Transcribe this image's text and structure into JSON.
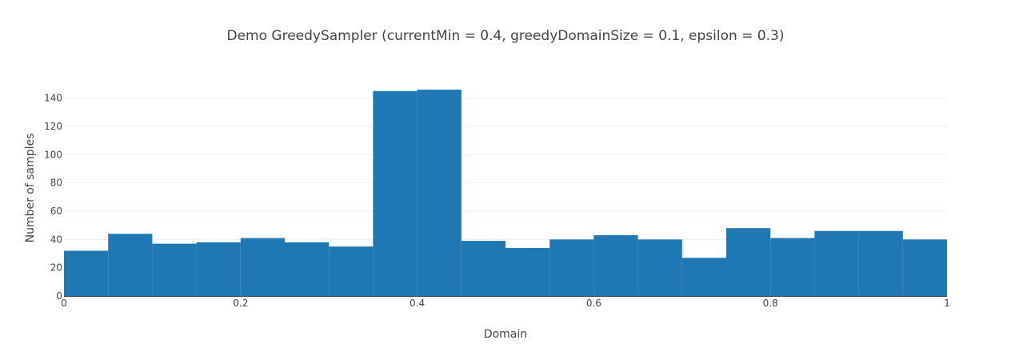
{
  "chart_data": {
    "type": "bar",
    "title": "Demo GreedySampler (currentMin = 0.4, greedyDomainSize = 0.1, epsilon = 0.3)",
    "xlabel": "Domain",
    "ylabel": "Number of samples",
    "bin_width": 0.05,
    "bins_start": [
      0,
      0.05,
      0.1,
      0.15,
      0.2,
      0.25,
      0.3,
      0.35,
      0.4,
      0.45,
      0.5,
      0.55,
      0.6,
      0.65,
      0.7,
      0.75,
      0.8,
      0.85,
      0.9,
      0.95
    ],
    "values": [
      32,
      44,
      37,
      38,
      41,
      38,
      35,
      145,
      146,
      39,
      34,
      40,
      43,
      40,
      27,
      48,
      41,
      46,
      46,
      40
    ],
    "xlim": [
      0,
      1
    ],
    "ylim": [
      0,
      150
    ],
    "x_ticks": [
      0,
      0.2,
      0.4,
      0.6,
      0.8,
      1
    ],
    "x_tick_labels": [
      "0",
      "0.2",
      "0.4",
      "0.6",
      "0.8",
      "1"
    ],
    "y_ticks": [
      0,
      20,
      40,
      60,
      80,
      100,
      120,
      140
    ],
    "y_tick_labels": [
      "0",
      "20",
      "40",
      "60",
      "80",
      "100",
      "120",
      "140"
    ],
    "bar_color": "#1f77b4",
    "grid": true,
    "legend": "none"
  }
}
